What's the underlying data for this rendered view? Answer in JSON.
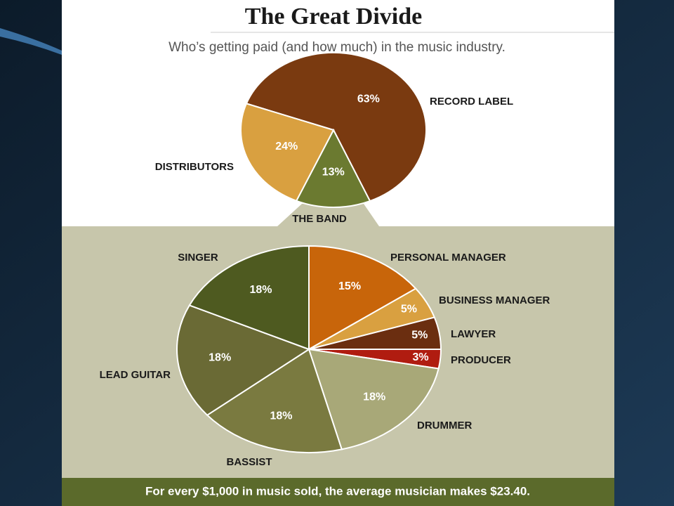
{
  "chart_data": [
    {
      "type": "pie",
      "title": "The Great Divide",
      "subtitle": "Who’s getting paid (and how much) in the music industry.",
      "categories": [
        "RECORD LABEL",
        "THE BAND",
        "DISTRIBUTORS"
      ],
      "values": [
        63,
        13,
        24
      ],
      "value_labels": [
        "63%",
        "13%",
        "24%"
      ],
      "colors": [
        "#7a3a10",
        "#6b7a30",
        "#d9a040"
      ]
    },
    {
      "type": "pie",
      "categories": [
        "PERSONAL MANAGER",
        "BUSINESS MANAGER",
        "LAWYER",
        "PRODUCER",
        "DRUMMER",
        "BASSIST",
        "LEAD GUITAR",
        "SINGER"
      ],
      "values": [
        15,
        5,
        5,
        3,
        18,
        18,
        18,
        18
      ],
      "value_labels": [
        "15%",
        "5%",
        "5%",
        "3%",
        "18%",
        "18%",
        "18%",
        "18%"
      ],
      "colors": [
        "#c8650a",
        "#d9a040",
        "#6b2e10",
        "#b01c10",
        "#a8a878",
        "#7a7a40",
        "#6a6a35",
        "#4e5a20"
      ],
      "annotation": "For every $1,000 in music sold, the average musician makes $23.40."
    }
  ]
}
